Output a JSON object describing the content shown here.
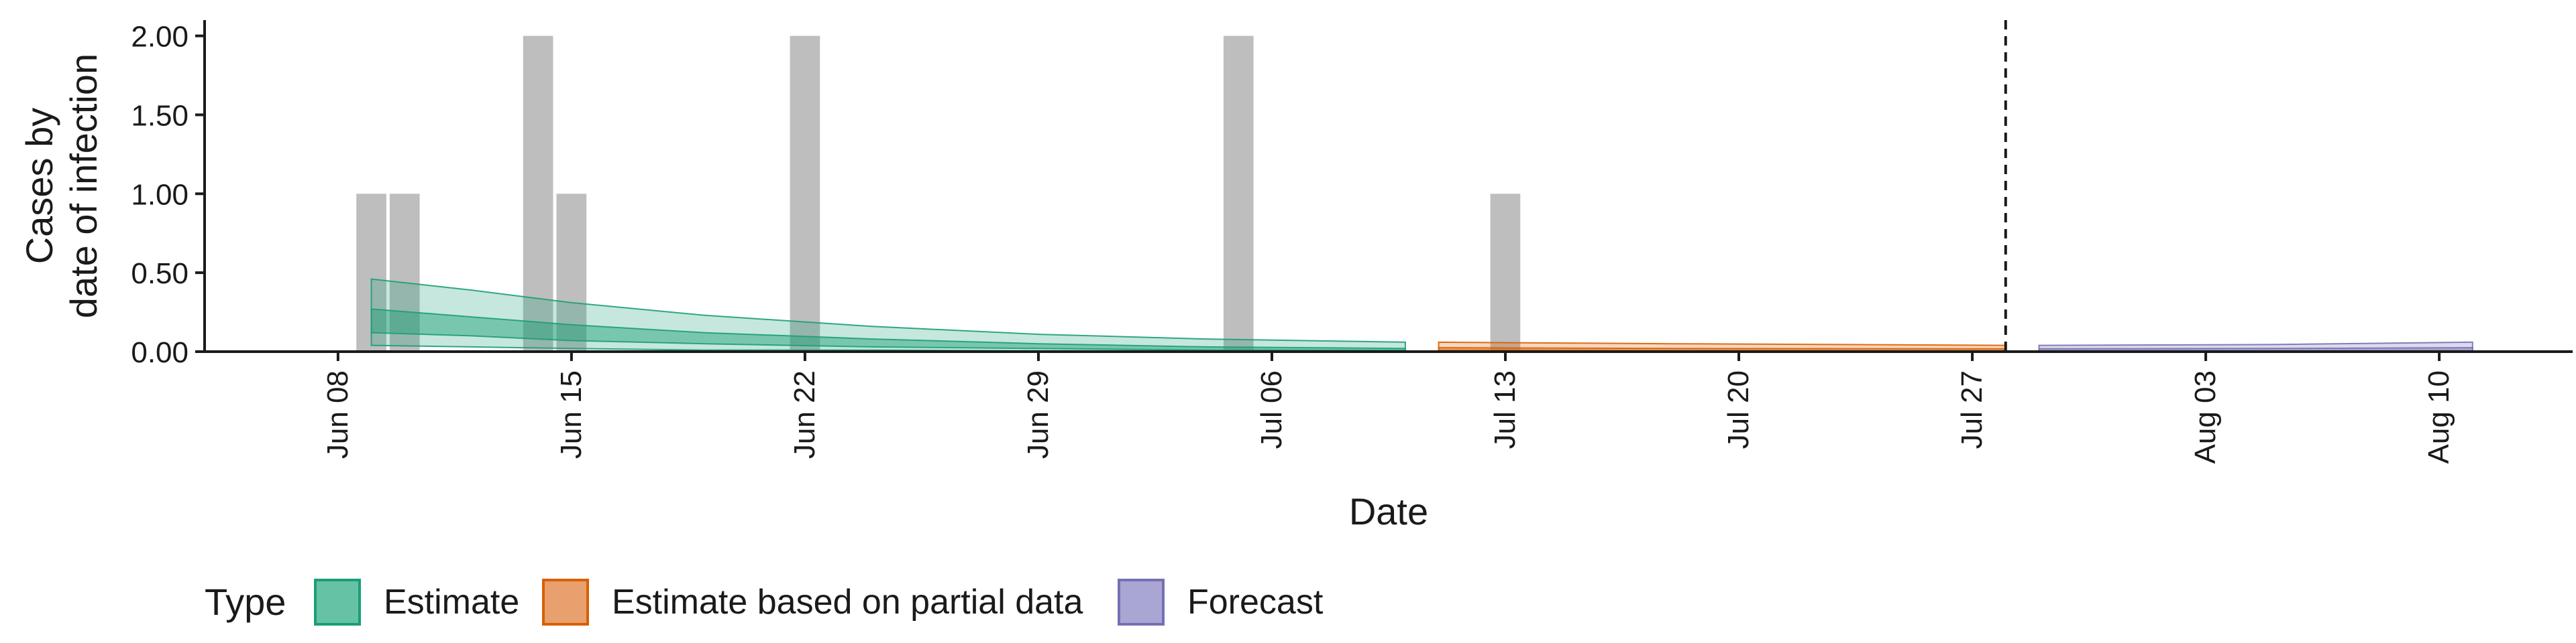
{
  "chart_data": {
    "type": "bar",
    "xlabel": "Date",
    "ylabel_lines": [
      "Cases by",
      "date of infection"
    ],
    "ylim": [
      0,
      2.1
    ],
    "y_ticks": [
      0,
      0.5,
      1,
      1.5,
      2
    ],
    "y_tick_labels": [
      "0.00",
      "0.50",
      "1.00",
      "1.50",
      "2.00"
    ],
    "x_range": [
      "2020-06-04",
      "2020-08-14"
    ],
    "x_ticks": [
      "2020-06-08",
      "2020-06-15",
      "2020-06-22",
      "2020-06-29",
      "2020-07-06",
      "2020-07-13",
      "2020-07-20",
      "2020-07-27",
      "2020-08-03",
      "2020-08-10"
    ],
    "x_tick_labels": [
      "Jun 08",
      "Jun 15",
      "Jun 22",
      "Jun 29",
      "Jul 06",
      "Jul 13",
      "Jul 20",
      "Jul 27",
      "Aug 03",
      "Aug 10"
    ],
    "bars": {
      "color": "#bebebe",
      "dates": [
        "2020-06-09",
        "2020-06-10",
        "2020-06-14",
        "2020-06-15",
        "2020-06-22",
        "2020-07-05",
        "2020-07-13"
      ],
      "values": [
        1,
        1,
        2,
        1,
        2,
        2,
        1
      ]
    },
    "vline": {
      "date": "2020-07-28",
      "style": "dashed"
    },
    "legend": {
      "title": "Type",
      "position": "bottom",
      "items": [
        {
          "label": "Estimate",
          "fill": "#66c2a5",
          "stroke": "#1b9e77"
        },
        {
          "label": "Estimate based on partial data",
          "fill": "#e8a06e",
          "stroke": "#d95f02"
        },
        {
          "label": "Forecast",
          "fill": "#a9a6d4",
          "stroke": "#7570b3"
        }
      ]
    },
    "series": [
      {
        "name": "Estimate",
        "color": "#1b9e77",
        "x": [
          "2020-06-09",
          "2020-06-12",
          "2020-06-15",
          "2020-06-19",
          "2020-06-24",
          "2020-06-29",
          "2020-07-04",
          "2020-07-10"
        ],
        "outer_upper": [
          0.46,
          0.39,
          0.31,
          0.23,
          0.16,
          0.11,
          0.08,
          0.06
        ],
        "outer_lower": [
          0.04,
          0.03,
          0.02,
          0.01,
          0.01,
          0.005,
          0.005,
          0.003
        ],
        "inner_upper": [
          0.27,
          0.22,
          0.17,
          0.12,
          0.08,
          0.05,
          0.03,
          0.02
        ],
        "inner_lower": [
          0.12,
          0.1,
          0.07,
          0.05,
          0.03,
          0.02,
          0.01,
          0.008
        ]
      },
      {
        "name": "Estimate based on partial data",
        "color": "#d95f02",
        "x": [
          "2020-07-11",
          "2020-07-18",
          "2020-07-28"
        ],
        "outer_upper": [
          0.06,
          0.05,
          0.04
        ],
        "outer_lower": [
          0.003,
          0.002,
          0.002
        ],
        "inner_upper": [
          0.025,
          0.02,
          0.018
        ],
        "inner_lower": [
          0.008,
          0.006,
          0.005
        ]
      },
      {
        "name": "Forecast",
        "color": "#7570b3",
        "x": [
          "2020-07-29",
          "2020-08-05",
          "2020-08-11"
        ],
        "outer_upper": [
          0.04,
          0.045,
          0.06
        ],
        "outer_lower": [
          0.002,
          0.002,
          0.003
        ],
        "inner_upper": [
          0.018,
          0.02,
          0.025
        ],
        "inner_lower": [
          0.005,
          0.005,
          0.006
        ]
      }
    ]
  }
}
